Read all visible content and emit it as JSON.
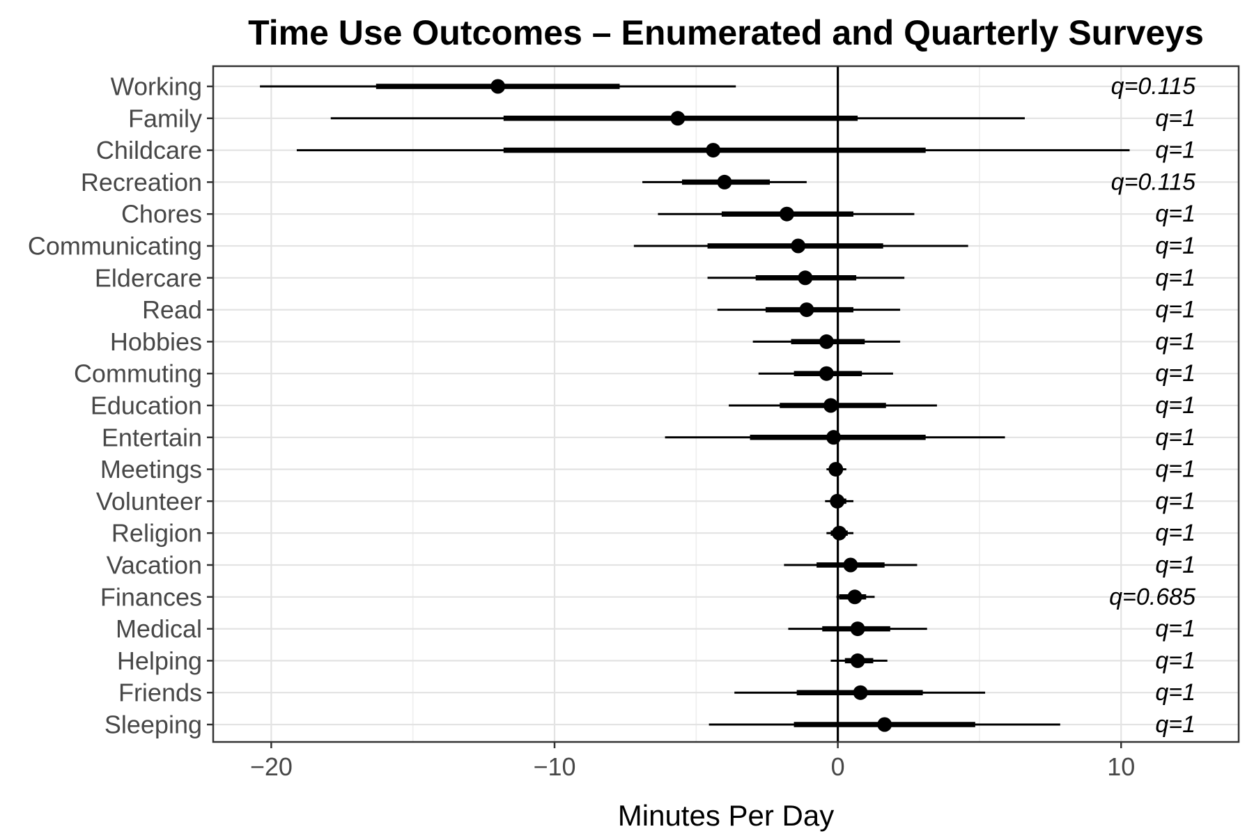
{
  "title": "Time Use Outcomes – Enumerated and Quarterly Surveys",
  "chart_data": {
    "type": "dot-whisker-forest",
    "title": "Time Use Outcomes – Enumerated and Quarterly Surveys",
    "xlabel": "Minutes Per Day",
    "ylabel": "",
    "xlim": [
      -22.05,
      14.15
    ],
    "grid": "on",
    "x_major_ticks": [
      {
        "value": -20,
        "label": "−20"
      },
      {
        "value": -10,
        "label": "−10"
      },
      {
        "value": 0,
        "label": "0"
      },
      {
        "value": 10,
        "label": "10"
      }
    ],
    "x_minor_gridlines": [
      -15,
      -5,
      5
    ],
    "zero_reference_line": 0,
    "categories": [
      "Working",
      "Family",
      "Childcare",
      "Recreation",
      "Chores",
      "Communicating",
      "Eldercare",
      "Read",
      "Hobbies",
      "Commuting",
      "Education",
      "Entertain",
      "Meetings",
      "Volunteer",
      "Religion",
      "Vacation",
      "Finances",
      "Medical",
      "Helping",
      "Friends",
      "Sleeping"
    ],
    "rows": [
      {
        "label": "Working",
        "estimate": -12.0,
        "inner_ci": [
          -16.3,
          -7.7
        ],
        "outer_ci": [
          -20.4,
          -3.6
        ],
        "q_label": "q=0.115"
      },
      {
        "label": "Family",
        "estimate": -5.65,
        "inner_ci": [
          -11.8,
          0.7
        ],
        "outer_ci": [
          -17.9,
          6.6
        ],
        "q_label": "q=1"
      },
      {
        "label": "Childcare",
        "estimate": -4.4,
        "inner_ci": [
          -11.8,
          3.1
        ],
        "outer_ci": [
          -19.1,
          10.3
        ],
        "q_label": "q=1"
      },
      {
        "label": "Recreation",
        "estimate": -4.0,
        "inner_ci": [
          -5.5,
          -2.4
        ],
        "outer_ci": [
          -6.9,
          -1.1
        ],
        "q_label": "q=0.115"
      },
      {
        "label": "Chores",
        "estimate": -1.8,
        "inner_ci": [
          -4.1,
          0.55
        ],
        "outer_ci": [
          -6.35,
          2.7
        ],
        "q_label": "q=1"
      },
      {
        "label": "Communicating",
        "estimate": -1.4,
        "inner_ci": [
          -4.6,
          1.6
        ],
        "outer_ci": [
          -7.2,
          4.6
        ],
        "q_label": "q=1"
      },
      {
        "label": "Eldercare",
        "estimate": -1.15,
        "inner_ci": [
          -2.9,
          0.65
        ],
        "outer_ci": [
          -4.6,
          2.35
        ],
        "q_label": "q=1"
      },
      {
        "label": "Read",
        "estimate": -1.1,
        "inner_ci": [
          -2.55,
          0.55
        ],
        "outer_ci": [
          -4.25,
          2.2
        ],
        "q_label": "q=1"
      },
      {
        "label": "Hobbies",
        "estimate": -0.4,
        "inner_ci": [
          -1.65,
          0.95
        ],
        "outer_ci": [
          -3.0,
          2.2
        ],
        "q_label": "q=1"
      },
      {
        "label": "Commuting",
        "estimate": -0.4,
        "inner_ci": [
          -1.55,
          0.85
        ],
        "outer_ci": [
          -2.8,
          1.95
        ],
        "q_label": "q=1"
      },
      {
        "label": "Education",
        "estimate": -0.25,
        "inner_ci": [
          -2.05,
          1.7
        ],
        "outer_ci": [
          -3.85,
          3.5
        ],
        "q_label": "q=1"
      },
      {
        "label": "Entertain",
        "estimate": -0.15,
        "inner_ci": [
          -3.1,
          3.1
        ],
        "outer_ci": [
          -6.1,
          5.9
        ],
        "q_label": "q=1"
      },
      {
        "label": "Meetings",
        "estimate": -0.07,
        "inner_ci": [
          -0.25,
          0.15
        ],
        "outer_ci": [
          -0.4,
          0.3
        ],
        "q_label": "q=1"
      },
      {
        "label": "Volunteer",
        "estimate": -0.02,
        "inner_ci": [
          -0.25,
          0.3
        ],
        "outer_ci": [
          -0.45,
          0.55
        ],
        "q_label": "q=1"
      },
      {
        "label": "Religion",
        "estimate": 0.05,
        "inner_ci": [
          -0.25,
          0.35
        ],
        "outer_ci": [
          -0.4,
          0.55
        ],
        "q_label": "q=1"
      },
      {
        "label": "Vacation",
        "estimate": 0.45,
        "inner_ci": [
          -0.75,
          1.65
        ],
        "outer_ci": [
          -1.9,
          2.8
        ],
        "q_label": "q=1"
      },
      {
        "label": "Finances",
        "estimate": 0.6,
        "inner_ci": [
          0.05,
          1.0
        ],
        "outer_ci": [
          -0.05,
          1.3
        ],
        "q_label": "q=0.685"
      },
      {
        "label": "Medical",
        "estimate": 0.7,
        "inner_ci": [
          -0.55,
          1.85
        ],
        "outer_ci": [
          -1.75,
          3.15
        ],
        "q_label": "q=1"
      },
      {
        "label": "Helping",
        "estimate": 0.7,
        "inner_ci": [
          0.25,
          1.25
        ],
        "outer_ci": [
          -0.25,
          1.75
        ],
        "q_label": "q=1"
      },
      {
        "label": "Friends",
        "estimate": 0.8,
        "inner_ci": [
          -1.45,
          3.0
        ],
        "outer_ci": [
          -3.65,
          5.2
        ],
        "q_label": "q=1"
      },
      {
        "label": "Sleeping",
        "estimate": 1.65,
        "inner_ci": [
          -1.55,
          4.85
        ],
        "outer_ci": [
          -4.55,
          7.85
        ],
        "q_label": "q=1"
      }
    ],
    "legend": "none"
  },
  "colors": {
    "background": "#ffffff",
    "point": "#000000",
    "interval_line": "#000000",
    "zero_line": "#000000",
    "panel_border": "#333333",
    "grid_major": "#e3e3e3",
    "grid_minor": "#efefef",
    "axis_text": "#474747",
    "tick_mark": "#333333",
    "title_text": "#000000",
    "q_label_text": "#000000"
  }
}
